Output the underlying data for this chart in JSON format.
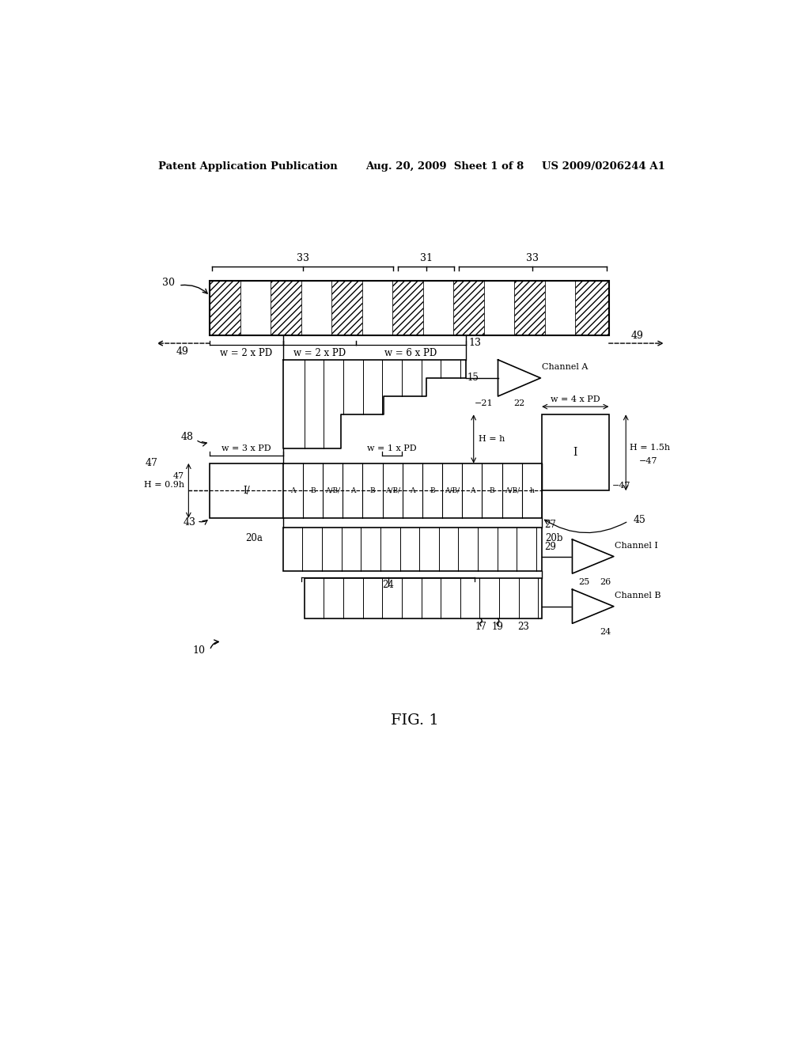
{
  "header_left": "Patent Application Publication",
  "header_mid": "Aug. 20, 2009  Sheet 1 of 8",
  "header_right": "US 2009/0206244 A1",
  "figure_label": "FIG. 1",
  "bg_color": "#ffffff",
  "line_color": "#000000"
}
